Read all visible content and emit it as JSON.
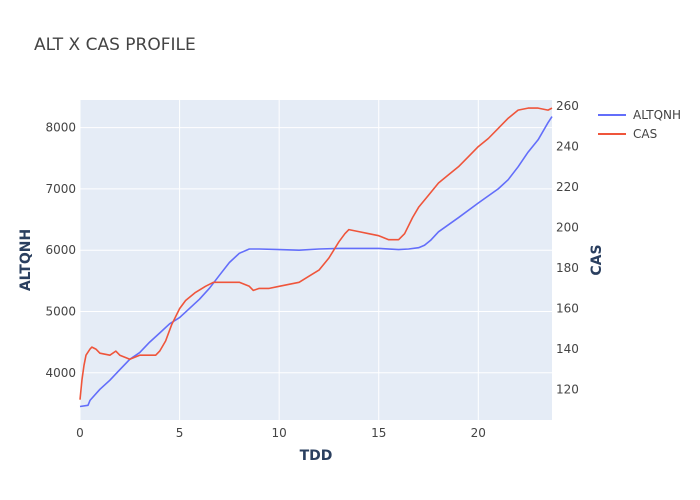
{
  "chart_data": {
    "type": "line",
    "title": "ALT X CAS PROFILE",
    "xlabel": "TDD",
    "ylabel": "ALTQNH",
    "y2label": "CAS",
    "xlim": [
      0,
      23.7
    ],
    "ylim": [
      3230,
      8450
    ],
    "y2lim": [
      105,
      263
    ],
    "xticks": [
      0,
      5,
      10,
      15,
      20
    ],
    "yticks": [
      4000,
      5000,
      6000,
      7000,
      8000
    ],
    "y2ticks": [
      120,
      140,
      160,
      180,
      200,
      220,
      240,
      260
    ],
    "grid": true,
    "legend_position": "top-right",
    "series": [
      {
        "name": "ALTQNH",
        "axis": "y",
        "color": "#636efa",
        "x": [
          0,
          0.4,
          0.5,
          1.0,
          1.5,
          2.0,
          2.5,
          3.0,
          3.5,
          4.0,
          4.5,
          5.0,
          5.5,
          6.0,
          6.5,
          7.0,
          7.5,
          8.0,
          8.5,
          9.0,
          10.0,
          11.0,
          12.0,
          13.0,
          14.0,
          15.0,
          16.0,
          16.5,
          17.0,
          17.3,
          17.6,
          18.0,
          19.0,
          20.0,
          21.0,
          21.5,
          22.0,
          22.5,
          23.0,
          23.5,
          23.7
        ],
        "y": [
          3450,
          3470,
          3550,
          3730,
          3880,
          4050,
          4220,
          4330,
          4500,
          4650,
          4800,
          4900,
          5050,
          5200,
          5380,
          5590,
          5800,
          5950,
          6020,
          6020,
          6010,
          6000,
          6020,
          6030,
          6030,
          6030,
          6010,
          6020,
          6040,
          6080,
          6160,
          6300,
          6530,
          6770,
          7000,
          7150,
          7360,
          7600,
          7800,
          8080,
          8180
        ]
      },
      {
        "name": "CAS",
        "axis": "y2",
        "color": "#ef553b",
        "x": [
          0,
          0.1,
          0.2,
          0.3,
          0.5,
          0.6,
          0.8,
          1.0,
          1.5,
          1.8,
          2.0,
          2.5,
          3.0,
          3.5,
          3.8,
          4.0,
          4.3,
          4.6,
          5.0,
          5.3,
          5.8,
          6.3,
          6.7,
          7.5,
          8.0,
          8.5,
          8.7,
          9.0,
          9.5,
          10.0,
          10.5,
          11.0,
          11.5,
          12.0,
          12.5,
          13.0,
          13.3,
          13.5,
          14.0,
          14.5,
          15.0,
          15.5,
          16.0,
          16.3,
          16.7,
          17.0,
          17.5,
          18.0,
          18.5,
          19.0,
          19.5,
          20.0,
          20.5,
          21.0,
          21.5,
          22.0,
          22.5,
          23.0,
          23.5,
          23.7
        ],
        "y": [
          115,
          125,
          132,
          137,
          140,
          141,
          140,
          138,
          137,
          139,
          137,
          135,
          137,
          137,
          137,
          139,
          144,
          152,
          160,
          164,
          168,
          171,
          173,
          173,
          173,
          171,
          169,
          170,
          170,
          171,
          172,
          173,
          176,
          179,
          185,
          193,
          197,
          199,
          198,
          197,
          196,
          194,
          194,
          197,
          205,
          210,
          216,
          222,
          226,
          230,
          235,
          240,
          244,
          249,
          254,
          258,
          259,
          259,
          258,
          259
        ]
      }
    ]
  }
}
